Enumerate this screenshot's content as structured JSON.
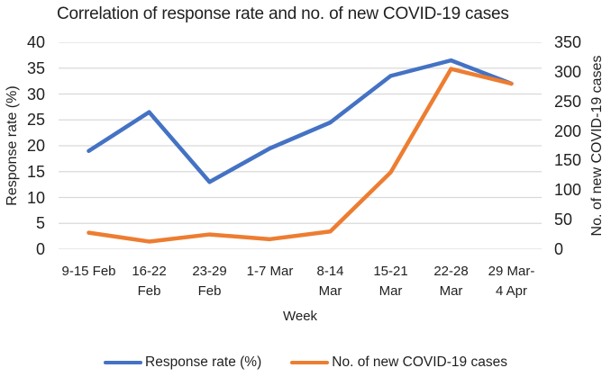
{
  "chart_data": {
    "type": "line",
    "title": "Correlation of response rate and no. of new COVID-19 cases",
    "categories": [
      "9-15 Feb",
      "16-22 Feb",
      "23-29 Feb",
      "1-7 Mar",
      "8-14 Mar",
      "15-21 Mar",
      "22-28 Mar",
      "29 Mar-4 Apr"
    ],
    "category_display_lines": [
      [
        "9-15 Feb"
      ],
      [
        "16-22",
        "Feb"
      ],
      [
        "23-29",
        "Feb"
      ],
      [
        "1-7 Mar"
      ],
      [
        "8-14",
        "Mar"
      ],
      [
        "15-21",
        "Mar"
      ],
      [
        "22-28",
        "Mar"
      ],
      [
        "29 Mar-",
        "4 Apr"
      ]
    ],
    "xlabel": "Week",
    "axes": {
      "left": {
        "label": "Response rate (%)",
        "min": 0,
        "max": 40,
        "ticks": [
          0,
          5,
          10,
          15,
          20,
          25,
          30,
          35,
          40
        ]
      },
      "right": {
        "label": "No. of new COVID-19 cases",
        "min": 0,
        "max": 350,
        "ticks": [
          0,
          50,
          100,
          150,
          200,
          250,
          300,
          350
        ]
      }
    },
    "series": [
      {
        "name": "Response rate (%)",
        "axis": "left",
        "color": "#4472C4",
        "values": [
          19,
          26.5,
          13,
          19.5,
          24.5,
          33.5,
          36.5,
          32
        ]
      },
      {
        "name": "No. of new COVID-19 cases",
        "axis": "right",
        "color": "#ED7D31",
        "values": [
          28,
          13,
          25,
          17,
          30,
          130,
          305,
          280
        ]
      }
    ],
    "grid": true,
    "legend_position": "bottom",
    "colors": {
      "gridline": "#d9d9d9",
      "text": "#1f1f1f"
    }
  }
}
